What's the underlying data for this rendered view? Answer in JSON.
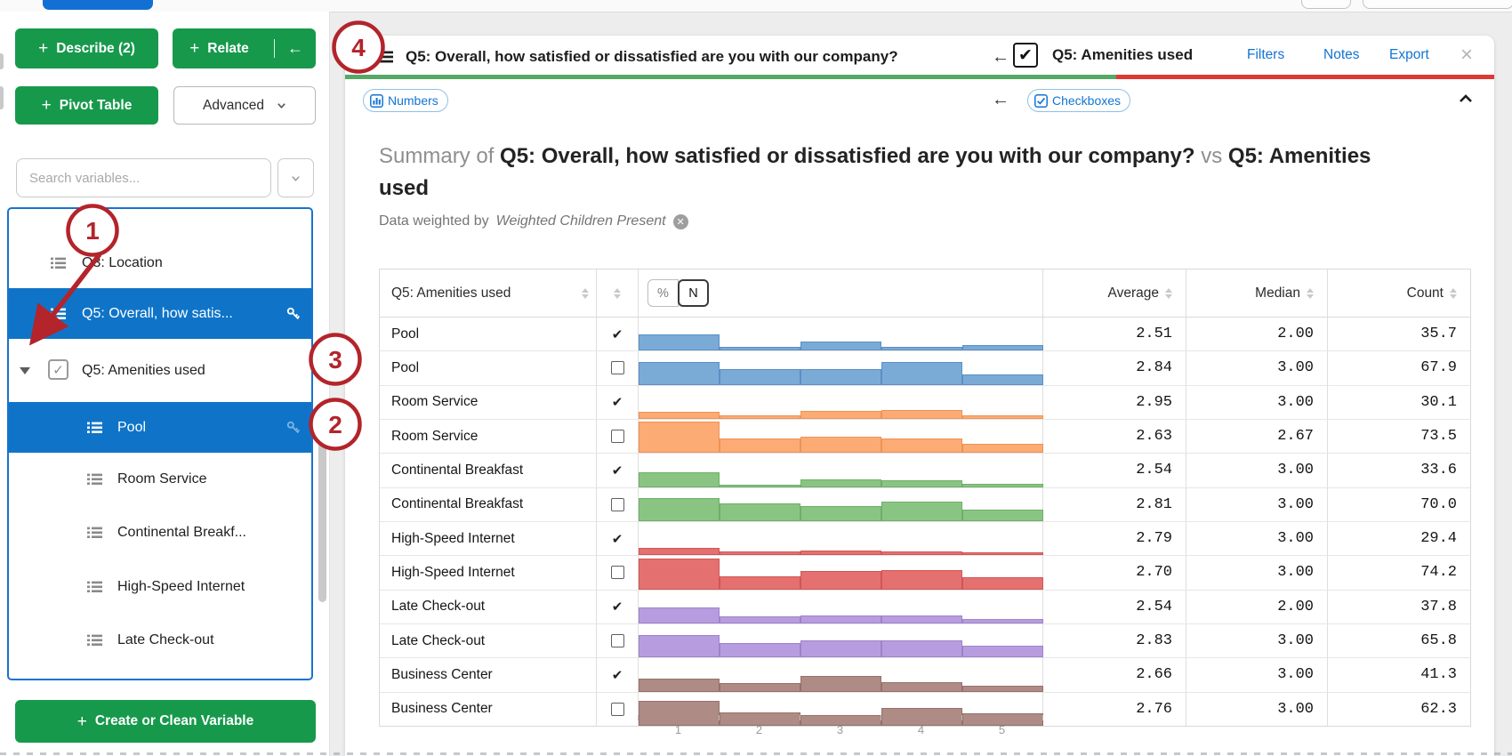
{
  "colors": {
    "accent_green": "#17994c",
    "selected_blue": "#0f74c8",
    "link_blue": "#1274d4",
    "annotation_red": "#b3242b",
    "titlebar_green": "#55a868",
    "titlebar_red": "#dc3a33"
  },
  "sidebar": {
    "plus": "+",
    "buttons": {
      "describe": "Describe (2)",
      "relate": "Relate",
      "relate_arrow": "←",
      "pivot": "Pivot Table",
      "advanced": "Advanced"
    },
    "search_placeholder": "Search variables...",
    "items": [
      {
        "label": "Q3: Location",
        "level": 0,
        "selected": false,
        "icon": "categorical-list",
        "key": false
      },
      {
        "label": "Q5: Overall, how satis...",
        "level": 0,
        "selected": true,
        "icon": "categorical-list",
        "key": true
      },
      {
        "label": "Q5: Amenities used",
        "level": 0,
        "selected": false,
        "expander": true,
        "checkbox": true,
        "checked": true
      },
      {
        "label": "Pool",
        "level": 1,
        "selected": true,
        "icon": "categorical-list",
        "key": true,
        "key_faint": true
      },
      {
        "label": "Room Service",
        "level": 1,
        "selected": false,
        "icon": "categorical-list",
        "key": false
      },
      {
        "label": "Continental Breakf...",
        "level": 1,
        "selected": false,
        "icon": "categorical-list",
        "key": false
      },
      {
        "label": "High-Speed Internet",
        "level": 1,
        "selected": false,
        "icon": "categorical-list",
        "key": false
      },
      {
        "label": "Late Check-out",
        "level": 1,
        "selected": false,
        "icon": "categorical-list",
        "key": false
      }
    ],
    "create_button": "Create or Clean Variable"
  },
  "panel": {
    "titlebar": {
      "left_title": "Q5: Overall, how satisfied or dissatisfied are you with our company?",
      "back_arrow": "←",
      "check": "✔",
      "right_title": "Q5: Amenities used",
      "links": [
        "Filters",
        "Notes",
        "Export"
      ],
      "close": "×"
    },
    "toolbar": {
      "numbers_badge": "Numbers",
      "back_arrow": "←",
      "checkboxes_badge": "Checkboxes"
    },
    "summary": {
      "prefix": "Summary of ",
      "title1": "Q5: Overall, how satisfied or dissatisfied are you with our company?",
      "vs": " vs ",
      "title2": "Q5: Amenities used",
      "weight_prefix": "Data weighted by",
      "weight_name": "Weighted Children Present",
      "weight_remove": "✕"
    },
    "table": {
      "headers": {
        "variable": "Q5: Amenities used",
        "average": "Average",
        "median": "Median",
        "count": "Count"
      },
      "toggle": {
        "percent": "%",
        "n": "N",
        "selected": "N"
      },
      "axis_labels": [
        "1",
        "2",
        "3",
        "4",
        "5"
      ],
      "rows": [
        {
          "label": "Pool",
          "checked": true,
          "color": "#7aaad6",
          "border": "#5b8fc4",
          "bars": [
            52,
            12,
            30,
            13,
            18
          ],
          "average": "2.51",
          "median": "2.00",
          "count": "35.7"
        },
        {
          "label": "Pool",
          "checked": false,
          "color": "#7aaad6",
          "border": "#5b8fc4",
          "bars": [
            70,
            48,
            48,
            70,
            33
          ],
          "average": "2.84",
          "median": "3.00",
          "count": "67.9"
        },
        {
          "label": "Room Service",
          "checked": true,
          "color": "#fcab74",
          "border": "#ee9355",
          "bars": [
            22,
            12,
            25,
            27,
            10
          ],
          "average": "2.95",
          "median": "3.00",
          "count": "30.1"
        },
        {
          "label": "Room Service",
          "checked": false,
          "color": "#fcab74",
          "border": "#ee9355",
          "bars": [
            97,
            45,
            50,
            46,
            28
          ],
          "average": "2.63",
          "median": "2.67",
          "count": "73.5"
        },
        {
          "label": "Continental Breakfast",
          "checked": true,
          "color": "#8ac483",
          "border": "#6daf67",
          "bars": [
            47,
            8,
            25,
            22,
            10
          ],
          "average": "2.54",
          "median": "3.00",
          "count": "33.6"
        },
        {
          "label": "Continental Breakfast",
          "checked": false,
          "color": "#8ac483",
          "border": "#6daf67",
          "bars": [
            72,
            55,
            48,
            60,
            35
          ],
          "average": "2.81",
          "median": "3.00",
          "count": "70.0"
        },
        {
          "label": "High-Speed Internet",
          "checked": true,
          "color": "#e57070",
          "border": "#d25555",
          "bars": [
            22,
            13,
            16,
            13,
            8
          ],
          "average": "2.79",
          "median": "3.00",
          "count": "29.4"
        },
        {
          "label": "High-Speed Internet",
          "checked": false,
          "color": "#e57070",
          "border": "#d25555",
          "bars": [
            95,
            41,
            57,
            60,
            39
          ],
          "average": "2.70",
          "median": "3.00",
          "count": "74.2"
        },
        {
          "label": "Late Check-out",
          "checked": true,
          "color": "#b79de0",
          "border": "#9d82c9",
          "bars": [
            50,
            21,
            25,
            25,
            14
          ],
          "average": "2.54",
          "median": "2.00",
          "count": "37.8"
        },
        {
          "label": "Late Check-out",
          "checked": false,
          "color": "#b79de0",
          "border": "#9d82c9",
          "bars": [
            70,
            45,
            54,
            54,
            38
          ],
          "average": "2.83",
          "median": "3.00",
          "count": "65.8"
        },
        {
          "label": "Business Center",
          "checked": true,
          "color": "#ae8b85",
          "border": "#96716a",
          "bars": [
            42,
            27,
            48,
            29,
            18
          ],
          "average": "2.66",
          "median": "3.00",
          "count": "41.3"
        },
        {
          "label": "Business Center",
          "checked": false,
          "color": "#ae8b85",
          "border": "#96716a",
          "bars": [
            79,
            41,
            34,
            55,
            39
          ],
          "average": "2.76",
          "median": "3.00",
          "count": "62.3"
        }
      ]
    }
  },
  "annotations": {
    "callouts": [
      "1",
      "2",
      "3",
      "4"
    ]
  }
}
